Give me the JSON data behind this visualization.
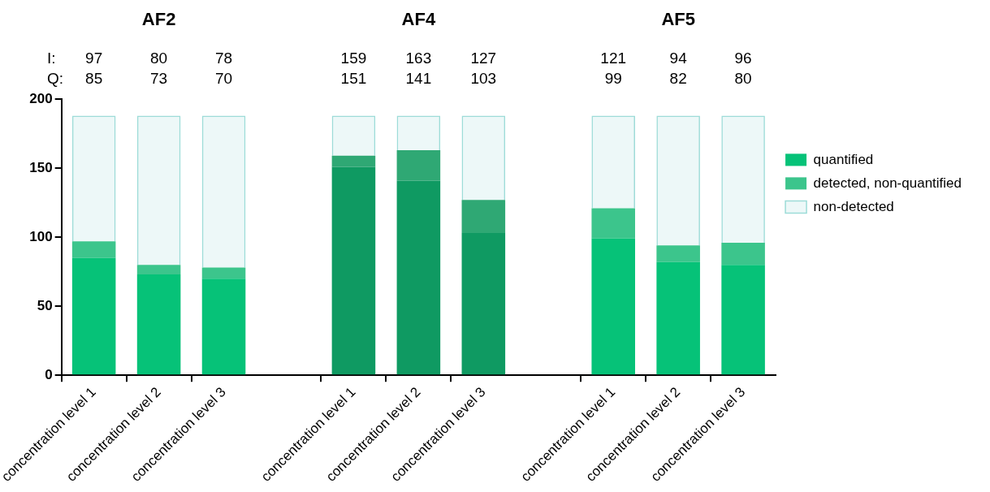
{
  "chart_data": {
    "type": "bar",
    "stacked": true,
    "legend": "right",
    "grid": false,
    "categories": [
      "concentration level 1",
      "concentration level 2",
      "concentration level 3",
      null,
      "concentration level 1",
      "concentration level 2",
      "concentration level 3",
      null,
      "concentration level 1",
      "concentration level 2",
      "concentration level 3"
    ],
    "ylim": [
      0,
      200
    ],
    "yticks": [
      0,
      50,
      100,
      150,
      200
    ],
    "annotations": [
      "AF2",
      "AF4",
      "AF5",
      "I:",
      "97",
      "80",
      "78",
      "159",
      "163",
      "127",
      "121",
      "94",
      "96",
      "Q:",
      "85",
      "73",
      "70",
      "151",
      "141",
      "103",
      "99",
      "82",
      "80"
    ],
    "series": [
      {
        "name": "quantified",
        "color": "#06c278",
        "colors": [
          "#06c278",
          "#06c278",
          "#06c278",
          null,
          "#0f9a62",
          "#0f9a62",
          "#0f9a62",
          null,
          "#06c278",
          "#06c278",
          "#06c278"
        ],
        "values": [
          85,
          73,
          70,
          null,
          151,
          141,
          103,
          null,
          99,
          82,
          80
        ]
      },
      {
        "name": "detected, non-quantified",
        "color": "#3cc58c",
        "colors": [
          "#3cc58c",
          "#3cc58c",
          "#3cc58c",
          null,
          "#2fa874",
          "#2fa874",
          "#2fa874",
          null,
          "#3cc58c",
          "#3cc58c",
          "#3cc58c"
        ],
        "values": [
          12,
          7,
          8,
          null,
          8,
          22,
          24,
          null,
          22,
          12,
          16
        ]
      },
      {
        "name": "non-detected",
        "color": "#9ddcd8",
        "values": [
          91,
          108,
          110,
          null,
          29,
          25,
          61,
          null,
          67,
          94,
          92
        ]
      }
    ]
  }
}
